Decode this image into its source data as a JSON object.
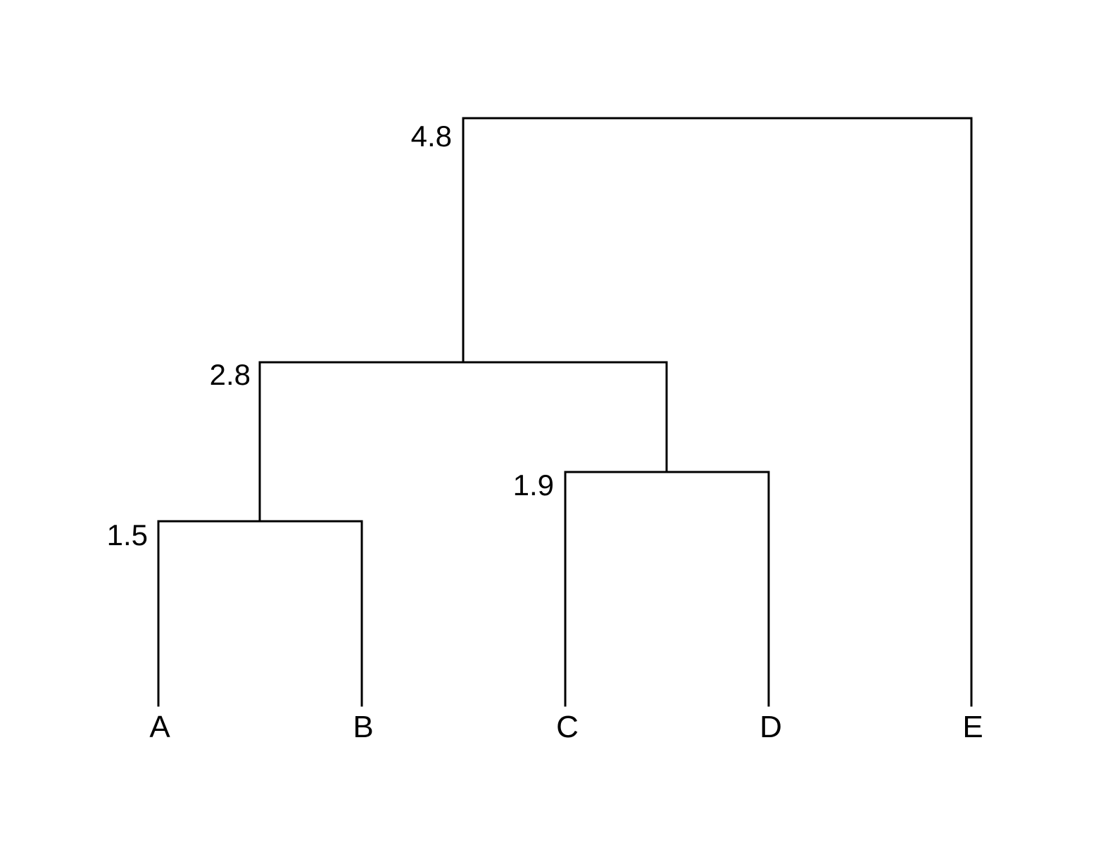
{
  "dendrogram": {
    "leaves": [
      "A",
      "B",
      "C",
      "D",
      "E"
    ],
    "merges": [
      {
        "label": "1.5",
        "height": 1.5,
        "members": [
          "A",
          "B"
        ]
      },
      {
        "label": "1.9",
        "height": 1.9,
        "members": [
          "C",
          "D"
        ]
      },
      {
        "label": "2.8",
        "height": 2.8,
        "members": [
          "A",
          "B",
          "C",
          "D"
        ]
      },
      {
        "label": "4.8",
        "height": 4.8,
        "members": [
          "A",
          "B",
          "C",
          "D",
          "E"
        ]
      }
    ],
    "line_color": "#000000"
  }
}
